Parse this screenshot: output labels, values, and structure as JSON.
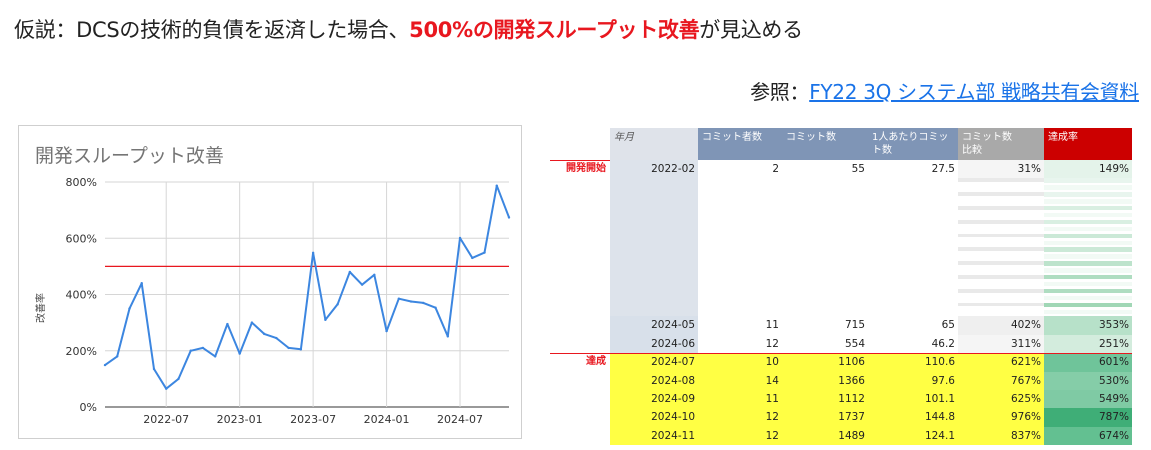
{
  "headline": {
    "prefix": "仮説：DCSの技術的負債を返済した場合、",
    "highlight": "500%の開発スループット改善",
    "suffix": "が見込める"
  },
  "reference": {
    "label": "参照：",
    "link_text": "FY22 3Q システム部 戦略共有会資料"
  },
  "colors": {
    "accent_red": "#e8171f",
    "line_blue": "#3c86e0",
    "header_blue": "#7f95b6",
    "header_gray": "#a9a9a9",
    "header_red": "#cc0000",
    "yellow": "#ffff44"
  },
  "chart_data": {
    "type": "line",
    "title": "開発スループット改善",
    "ylabel": "改善率",
    "xlabel": "",
    "ylim": [
      0,
      800
    ],
    "yticks": [
      "0%",
      "200%",
      "400%",
      "600%",
      "800%"
    ],
    "xticks": [
      "2022-07",
      "2023-01",
      "2023-07",
      "2024-01",
      "2024-07"
    ],
    "grid": true,
    "reference_line": 500,
    "series": [
      {
        "x": [
          "2022-02",
          "2022-03",
          "2022-04",
          "2022-05",
          "2022-06",
          "2022-07",
          "2022-08",
          "2022-09",
          "2022-10",
          "2022-11",
          "2022-12",
          "2023-01",
          "2023-02",
          "2023-03",
          "2023-04",
          "2023-05",
          "2023-06",
          "2023-07",
          "2023-08",
          "2023-09",
          "2023-10",
          "2023-11",
          "2023-12",
          "2024-01",
          "2024-02",
          "2024-03",
          "2024-04",
          "2024-05",
          "2024-06",
          "2024-07",
          "2024-08",
          "2024-09",
          "2024-10",
          "2024-11"
        ],
        "values": [
          149,
          180,
          350,
          440,
          135,
          65,
          100,
          200,
          210,
          180,
          295,
          190,
          300,
          260,
          245,
          210,
          205,
          548,
          310,
          365,
          480,
          435,
          470,
          270,
          385,
          375,
          370,
          353,
          251,
          601,
          530,
          549,
          787,
          674
        ]
      }
    ]
  },
  "table": {
    "headers": [
      "年月",
      "コミット者数",
      "コミット数",
      "1人あたりコミット数",
      "コミット数\n比較",
      "達成率"
    ],
    "section_labels": {
      "start": "開発開始",
      "achieved": "達成"
    },
    "first_row": [
      "2022-02",
      "2",
      "55",
      "27.5",
      "31%",
      "149%"
    ],
    "middle_rows": [
      [
        "2024-05",
        "11",
        "715",
        "65",
        "402%",
        "353%"
      ],
      [
        "2024-06",
        "12",
        "554",
        "46.2",
        "311%",
        "251%"
      ]
    ],
    "achieved_rows": [
      [
        "2024-07",
        "10",
        "1106",
        "110.6",
        "621%",
        "601%"
      ],
      [
        "2024-08",
        "14",
        "1366",
        "97.6",
        "767%",
        "530%"
      ],
      [
        "2024-09",
        "11",
        "1112",
        "101.1",
        "625%",
        "549%"
      ],
      [
        "2024-10",
        "12",
        "1737",
        "144.8",
        "976%",
        "787%"
      ],
      [
        "2024-11",
        "12",
        "1489",
        "124.1",
        "837%",
        "674%"
      ]
    ]
  }
}
